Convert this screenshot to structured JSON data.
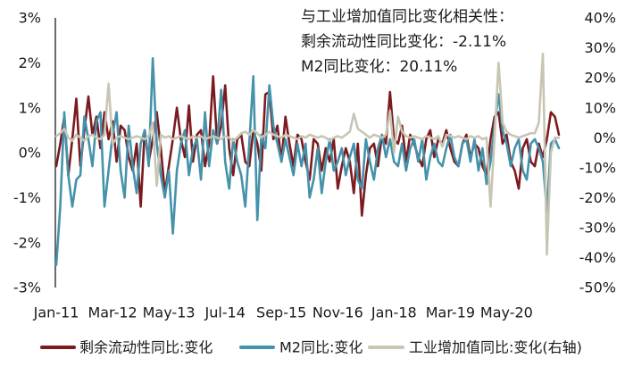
{
  "chart_data": {
    "type": "line",
    "annotations": [
      "与工业增加值同比变化相关性：",
      "剩余流动性同比变化：-2.11%",
      "M2同比变化：20.11%"
    ],
    "x": [
      "Jan-11",
      "Feb-11",
      "Mar-11",
      "Apr-11",
      "May-11",
      "Jun-11",
      "Jul-11",
      "Aug-11",
      "Sep-11",
      "Oct-11",
      "Nov-11",
      "Dec-11",
      "Jan-12",
      "Feb-12",
      "Mar-12",
      "Apr-12",
      "May-12",
      "Jun-12",
      "Jul-12",
      "Aug-12",
      "Sep-12",
      "Oct-12",
      "Nov-12",
      "Dec-12",
      "Jan-13",
      "Feb-13",
      "Mar-13",
      "Apr-13",
      "May-13",
      "Jun-13",
      "Jul-13",
      "Aug-13",
      "Sep-13",
      "Oct-13",
      "Nov-13",
      "Dec-13",
      "Jan-14",
      "Feb-14",
      "Mar-14",
      "Apr-14",
      "May-14",
      "Jun-14",
      "Jul-14",
      "Aug-14",
      "Sep-14",
      "Oct-14",
      "Nov-14",
      "Dec-14",
      "Jan-15",
      "Feb-15",
      "Mar-15",
      "Apr-15",
      "May-15",
      "Jun-15",
      "Jul-15",
      "Aug-15",
      "Sep-15",
      "Oct-15",
      "Nov-15",
      "Dec-15",
      "Jan-16",
      "Feb-16",
      "Mar-16",
      "Apr-16",
      "May-16",
      "Jun-16",
      "Jul-16",
      "Aug-16",
      "Sep-16",
      "Oct-16",
      "Nov-16",
      "Dec-16",
      "Jan-17",
      "Feb-17",
      "Mar-17",
      "Apr-17",
      "May-17",
      "Jun-17",
      "Jul-17",
      "Aug-17",
      "Sep-17",
      "Oct-17",
      "Nov-17",
      "Dec-17",
      "Jan-18",
      "Feb-18",
      "Mar-18",
      "Apr-18",
      "May-18",
      "Jun-18",
      "Jul-18",
      "Aug-18",
      "Sep-18",
      "Oct-18",
      "Nov-18",
      "Dec-18",
      "Jan-19",
      "Feb-19",
      "Mar-19",
      "Apr-19",
      "May-19",
      "Jun-19",
      "Jul-19",
      "Aug-19",
      "Sep-19",
      "Oct-19",
      "Nov-19",
      "Dec-19",
      "Jan-20",
      "Feb-20",
      "Mar-20",
      "Apr-20",
      "May-20",
      "Jun-20",
      "Jul-20",
      "Aug-20",
      "Sep-20",
      "Oct-20",
      "Nov-20",
      "Dec-20",
      "Jan-21",
      "Feb-21",
      "Mar-21",
      "Apr-21",
      "May-21",
      "Jun-21"
    ],
    "x_ticks": [
      "Jan-11",
      "Mar-12",
      "May-13",
      "Jul-14",
      "Sep-15",
      "Nov-16",
      "Jan-18",
      "Mar-19",
      "May-20"
    ],
    "ylim": [
      -3,
      3
    ],
    "y_ticks": [
      "3%",
      "2%",
      "1%",
      "0%",
      "-1%",
      "-2%",
      "-3%"
    ],
    "y2lim": [
      -50,
      40
    ],
    "y2_ticks": [
      "40%",
      "30%",
      "20%",
      "10%",
      "0%",
      "-10%",
      "-20%",
      "-30%",
      "-40%",
      "-50%"
    ],
    "grid": false,
    "legend_position": "bottom",
    "series": [
      {
        "name": "剩余流动性同比:变化",
        "axis": "left",
        "color": "#7B1B1F",
        "values": [
          -0.3,
          0.2,
          0.8,
          -0.5,
          0.3,
          1.2,
          -0.3,
          0.5,
          1.25,
          0.4,
          0.8,
          0.1,
          0.9,
          0.3,
          0.7,
          -0.2,
          0.6,
          0.5,
          -0.1,
          -0.4,
          0.2,
          -1.2,
          0.5,
          -0.2,
          0.3,
          0.9,
          0.1,
          -0.9,
          -0.3,
          0.3,
          1.0,
          0.3,
          -0.1,
          1.05,
          -0.2,
          0.4,
          0.5,
          -0.3,
          0.2,
          1.7,
          0.2,
          0.6,
          1.5,
          0.1,
          -0.5,
          0.3,
          0.4,
          -0.2,
          -0.3,
          0.5,
          0.2,
          -0.4,
          1.3,
          1.35,
          0.3,
          0.6,
          -0.2,
          0.8,
          0.2,
          -0.3,
          0.4,
          0.3,
          -0.2,
          -0.6,
          0.3,
          0.2,
          -0.4,
          0.1,
          -0.2,
          0.3,
          -0.8,
          -0.3,
          0.1,
          -0.2,
          -0.9,
          0.2,
          -1.4,
          -0.5,
          0.1,
          0.2,
          -0.3,
          0.4,
          0.2,
          1.35,
          0.3,
          0.2,
          0.6,
          -0.2,
          0.4,
          0.2,
          -0.1,
          -0.3,
          0.3,
          0.5,
          -0.1,
          0.3,
          0.2,
          0.5,
          0.1,
          -0.2,
          -0.3,
          0.2,
          0.4,
          -0.1,
          0.2,
          0.1,
          -0.3,
          -0.5,
          0.3,
          0.8,
          0.9,
          0.2,
          0.4,
          -0.2,
          -0.4,
          -0.8,
          0.1,
          0.3,
          -0.2,
          -0.3,
          0.2,
          -0.1,
          0.3,
          0.9,
          0.8,
          0.4
        ]
      },
      {
        "name": "M2同比:变化",
        "axis": "left",
        "color": "#4592AB",
        "values": [
          -2.5,
          -1.2,
          0.9,
          -0.5,
          -1.2,
          -0.6,
          -0.5,
          0.8,
          0.3,
          -0.3,
          0.7,
          0.9,
          -1.2,
          -0.4,
          0.4,
          0.9,
          -0.4,
          -1.0,
          0.6,
          -0.3,
          -0.9,
          0.2,
          0.5,
          -0.3,
          2.1,
          0.2,
          -0.5,
          -1.0,
          -0.4,
          -1.8,
          -0.4,
          0.2,
          0.5,
          -0.5,
          0.1,
          0.3,
          -0.6,
          0.9,
          -0.3,
          0.5,
          0.2,
          1.4,
          -0.2,
          -0.8,
          0.3,
          -0.2,
          -0.5,
          -1.2,
          0.2,
          1.7,
          -1.5,
          0.4,
          0.1,
          1.5,
          0.6,
          0.2,
          -0.2,
          0.3,
          -0.1,
          -0.5,
          0.2,
          -0.3,
          0.2,
          -1.0,
          -0.6,
          0.1,
          -0.9,
          -0.2,
          0.3,
          -0.4,
          -0.2,
          0.1,
          -0.5,
          -0.1,
          0.2,
          -0.6,
          -0.8,
          0.3,
          -0.2,
          -0.6,
          0.1,
          0.4,
          -0.1,
          0.3,
          -0.2,
          -0.3,
          0.2,
          -0.4,
          0.1,
          0.3,
          -0.2,
          0.3,
          -0.6,
          -0.1,
          0.2,
          -0.2,
          -0.3,
          0.1,
          0.4,
          -0.1,
          -0.3,
          0.2,
          0.3,
          -0.2,
          0.3,
          -0.4,
          0.1,
          -0.7,
          -0.2,
          0.6,
          1.3,
          0.5,
          0.2,
          -0.3,
          0.1,
          0.3,
          -0.4,
          -0.6,
          0.2,
          0.3,
          0.1,
          -0.2,
          -1.3,
          0.2,
          0.3,
          0.1
        ]
      },
      {
        "name": "工业增加值同比:变化(右轴)",
        "axis": "right",
        "color": "#C8C5B3",
        "values": [
          0.5,
          1.5,
          3,
          0,
          -1,
          1,
          0,
          -1,
          0.5,
          1,
          0,
          -0.5,
          1,
          18,
          -2,
          0,
          0.5,
          0,
          -0.5,
          0,
          0.5,
          0,
          -0.5,
          0.5,
          5,
          -16,
          1,
          0,
          0.5,
          -0.5,
          0,
          0.5,
          0,
          -0.5,
          0.5,
          0,
          0.5,
          -0.5,
          0,
          0.5,
          0,
          -0.5,
          0.5,
          0,
          -1,
          0,
          1.5,
          2,
          1,
          2.5,
          1.5,
          0,
          1,
          2,
          1,
          0.5,
          0,
          1,
          0.5,
          0,
          -0.5,
          0.5,
          0,
          1,
          0.5,
          0,
          0.5,
          0,
          -1,
          0,
          0.5,
          0,
          1,
          2,
          8,
          3,
          2,
          1,
          0,
          1,
          0.5,
          0,
          1,
          9,
          -5,
          7,
          2,
          0.5,
          0,
          0.5,
          0,
          -0.5,
          0.5,
          0,
          -0.5,
          0.5,
          -3,
          1,
          0.5,
          0,
          0.5,
          0,
          -0.5,
          0.5,
          0,
          0.5,
          -0.5,
          0,
          -23,
          0,
          25,
          5,
          2,
          1,
          0.5,
          0,
          0.5,
          1,
          1.5,
          1.5,
          5,
          28,
          -39,
          -5,
          0,
          0
        ]
      }
    ]
  }
}
